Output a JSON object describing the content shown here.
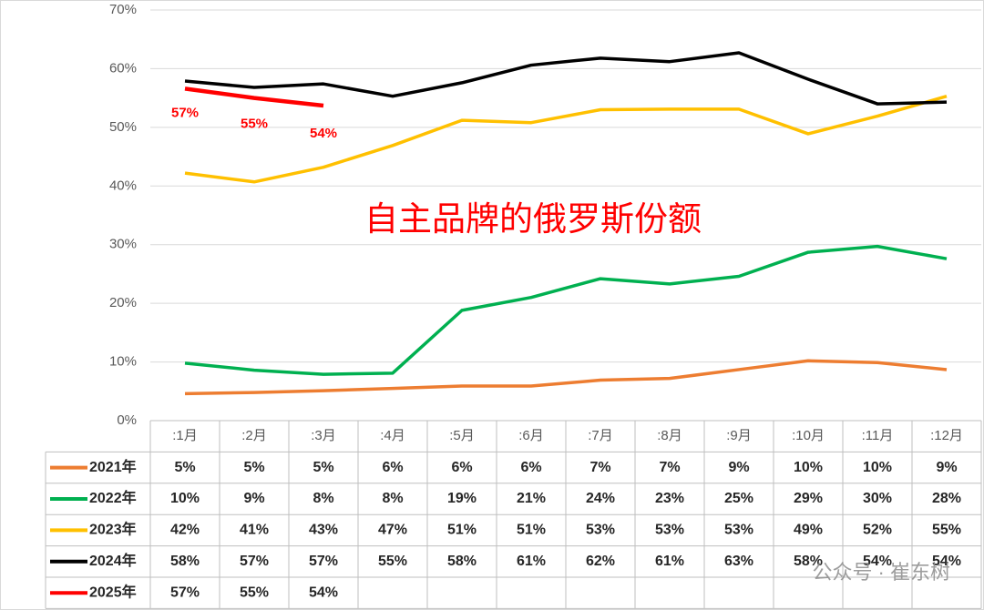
{
  "chart_data": {
    "type": "line",
    "annotation": "自主品牌的俄罗斯份额",
    "watermark": "公众号 · 崔东树",
    "categories": [
      ":1月",
      ":2月",
      ":3月",
      ":4月",
      ":5月",
      ":6月",
      ":7月",
      ":8月",
      ":9月",
      ":10月",
      ":11月",
      ":12月"
    ],
    "ylim": [
      0,
      70
    ],
    "yticks": [
      {
        "value": 0,
        "label": "0%"
      },
      {
        "value": 10,
        "label": "10%"
      },
      {
        "value": 20,
        "label": "20%"
      },
      {
        "value": 30,
        "label": "30%"
      },
      {
        "value": 40,
        "label": "40%"
      },
      {
        "value": 50,
        "label": "50%"
      },
      {
        "value": 60,
        "label": "60%"
      },
      {
        "value": 70,
        "label": "70%"
      }
    ],
    "grid": true,
    "series": [
      {
        "name": "2021年",
        "color": "#ED7D31",
        "values": [
          4.6,
          4.8,
          5.1,
          5.5,
          5.9,
          5.9,
          6.9,
          7.2,
          8.7,
          10.2,
          9.9,
          8.7
        ],
        "value_labels": [
          "5%",
          "5%",
          "5%",
          "6%",
          "6%",
          "6%",
          "7%",
          "7%",
          "9%",
          "10%",
          "10%",
          "9%"
        ]
      },
      {
        "name": "2022年",
        "color": "#00B050",
        "values": [
          9.8,
          8.6,
          7.9,
          8.1,
          18.8,
          21.0,
          24.2,
          23.3,
          24.6,
          28.7,
          29.7,
          27.6
        ],
        "value_labels": [
          "10%",
          "9%",
          "8%",
          "8%",
          "19%",
          "21%",
          "24%",
          "23%",
          "25%",
          "29%",
          "30%",
          "28%"
        ]
      },
      {
        "name": "2023年",
        "color": "#FFC000",
        "values": [
          42.2,
          40.7,
          43.2,
          46.9,
          51.2,
          50.8,
          53.0,
          53.1,
          53.1,
          48.9,
          51.9,
          55.3
        ],
        "value_labels": [
          "42%",
          "41%",
          "43%",
          "47%",
          "51%",
          "51%",
          "53%",
          "53%",
          "53%",
          "49%",
          "52%",
          "55%"
        ]
      },
      {
        "name": "2024年",
        "color": "#000000",
        "values": [
          57.9,
          56.8,
          57.4,
          55.3,
          57.6,
          60.6,
          61.8,
          61.2,
          62.7,
          58.2,
          54.0,
          54.3
        ],
        "value_labels": [
          "58%",
          "57%",
          "57%",
          "55%",
          "58%",
          "61%",
          "62%",
          "61%",
          "63%",
          "58%",
          "54%",
          "54%"
        ]
      },
      {
        "name": "2025年",
        "color": "#FF0000",
        "values": [
          56.6,
          55.0,
          53.7,
          null,
          null,
          null,
          null,
          null,
          null,
          null,
          null,
          null
        ],
        "value_labels": [
          "57%",
          "55%",
          "54%",
          null,
          null,
          null,
          null,
          null,
          null,
          null,
          null,
          null
        ]
      }
    ]
  }
}
